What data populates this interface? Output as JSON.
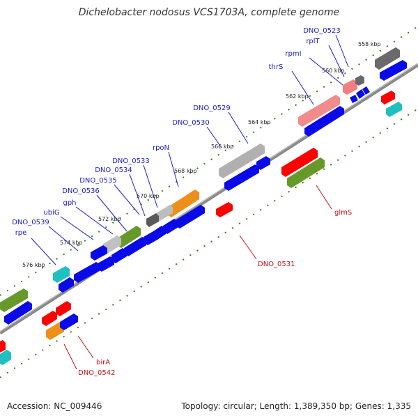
{
  "title": "Dichelobacter nodosus VCS1703A, complete genome",
  "footer": {
    "accession": "Accession: NC_009446",
    "stats": "Topology: circular; Length: 1,389,350 bp; Genes: 1,335"
  },
  "colors": {
    "backbone": "#808080",
    "tick": "#2e7d1a",
    "forward_label": "#1c1ccc",
    "reverse_label": "#cc1111",
    "cds": "#0a0ae8",
    "rrna": "#ff0000",
    "trna": "#66992a",
    "other": "#ee8f1a",
    "misc": "#20c0c0"
  },
  "kbp_labels": [
    {
      "text": "558 kbp"
    },
    {
      "text": "560 kbp"
    },
    {
      "text": "562 kbp"
    },
    {
      "text": "564 kbp"
    },
    {
      "text": "566 kbp"
    },
    {
      "text": "568 kbp"
    },
    {
      "text": "570 kbp"
    },
    {
      "text": "572 kbp"
    },
    {
      "text": "574 kbp"
    },
    {
      "text": "576 kbp"
    }
  ],
  "forward_genes": [
    {
      "label": "DNO_0523"
    },
    {
      "label": "rplT"
    },
    {
      "label": "rpmI"
    },
    {
      "label": "thrS"
    },
    {
      "label": "DNO_0529"
    },
    {
      "label": "DNO_0530"
    },
    {
      "label": "rpoN"
    },
    {
      "label": "DNO_0533"
    },
    {
      "label": "DNO_0534"
    },
    {
      "label": "DNO_0535"
    },
    {
      "label": "DNO_0536"
    },
    {
      "label": "gph"
    },
    {
      "label": "ubiG"
    },
    {
      "label": "DNO_0539"
    },
    {
      "label": "rpe"
    }
  ],
  "reverse_genes": [
    {
      "label": "glmS"
    },
    {
      "label": "DNO_0531"
    },
    {
      "label": "birA"
    },
    {
      "label": "DNO_0542"
    }
  ]
}
